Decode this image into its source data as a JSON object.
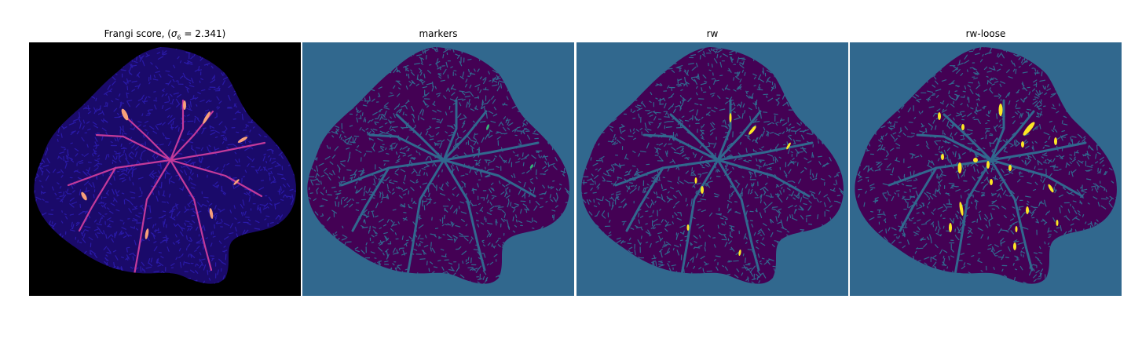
{
  "figure": {
    "panels": [
      {
        "title_prefix": "Frangi score, (",
        "title_sigma": "σ",
        "title_sub": "6",
        "title_suffix": " = 2.341)",
        "background": "#000000",
        "tissue_color": "#1a0a6a",
        "texture_color": "#2a1aa8",
        "vessel_color": "#c33a9a",
        "highlight_color": "#f8a07a"
      },
      {
        "title": "markers",
        "background": "#31688e",
        "tissue_color": "#440154",
        "vessel_color": "#31688e",
        "highlight_color": "#35b779"
      },
      {
        "title": "rw",
        "background": "#31688e",
        "tissue_color": "#440154",
        "vessel_color": "#31688e",
        "highlight_color": "#fde725"
      },
      {
        "title": "rw-loose",
        "background": "#31688e",
        "tissue_color": "#440154",
        "vessel_color": "#31688e",
        "highlight_color": "#fde725"
      }
    ]
  }
}
